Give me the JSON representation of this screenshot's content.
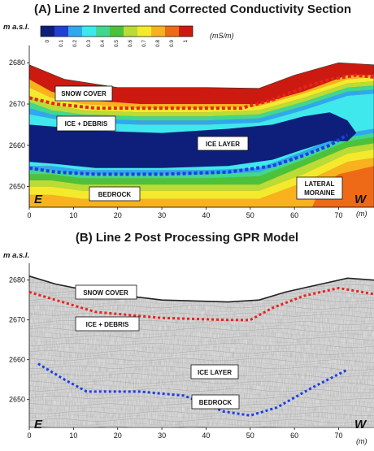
{
  "panel_a": {
    "title": "(A) Line 2 Inverted and Corrected Conductivity Section",
    "y_label": "m a.s.l.",
    "x_unit": "(m)",
    "colorbar": {
      "ticks": [
        "0",
        "0.1",
        "0.2",
        "0.3",
        "0.4",
        "0.5",
        "0.6",
        "0.7",
        "0.8",
        "0.9",
        "1"
      ],
      "unit": "(mS/m)",
      "colors": [
        "#0d1f7a",
        "#1f3fd6",
        "#2ea9f0",
        "#3fe8ec",
        "#3fd88e",
        "#4cc23a",
        "#b9dc36",
        "#f3ea2e",
        "#f7b21e",
        "#ee6a17",
        "#cc1a10"
      ]
    },
    "labels": {
      "snow_cover": "SNOW COVER",
      "ice_debris": "ICE + DEBRIS",
      "ice_layer": "ICE LAYER",
      "bedrock": "BEDROCK",
      "lateral_moraine_1": "LATERAL",
      "lateral_moraine_2": "MORAINE"
    },
    "west": "W",
    "east": "E"
  },
  "panel_b": {
    "title": "(B) Line 2 Post  Processing GPR Model",
    "y_label": "m a.s.l.",
    "x_unit": "(m)",
    "labels": {
      "snow_cover": "SNOW COVER",
      "ice_debris": "ICE + DEBRIS",
      "ice_layer": "ICE LAYER",
      "bedrock": "BEDROCK"
    },
    "west": "W",
    "east": "E"
  },
  "axes": {
    "x_ticks": [
      0,
      10,
      20,
      30,
      40,
      50,
      60,
      70
    ],
    "y_ticks": [
      2650,
      2660,
      2670,
      2680
    ],
    "x_range": [
      0,
      78
    ],
    "y_range_a": [
      2645,
      2683
    ],
    "y_range_b": [
      2643,
      2683
    ]
  },
  "colors": {
    "red_interface": "#e8231e",
    "blue_interface": "#1b3ee6"
  }
}
